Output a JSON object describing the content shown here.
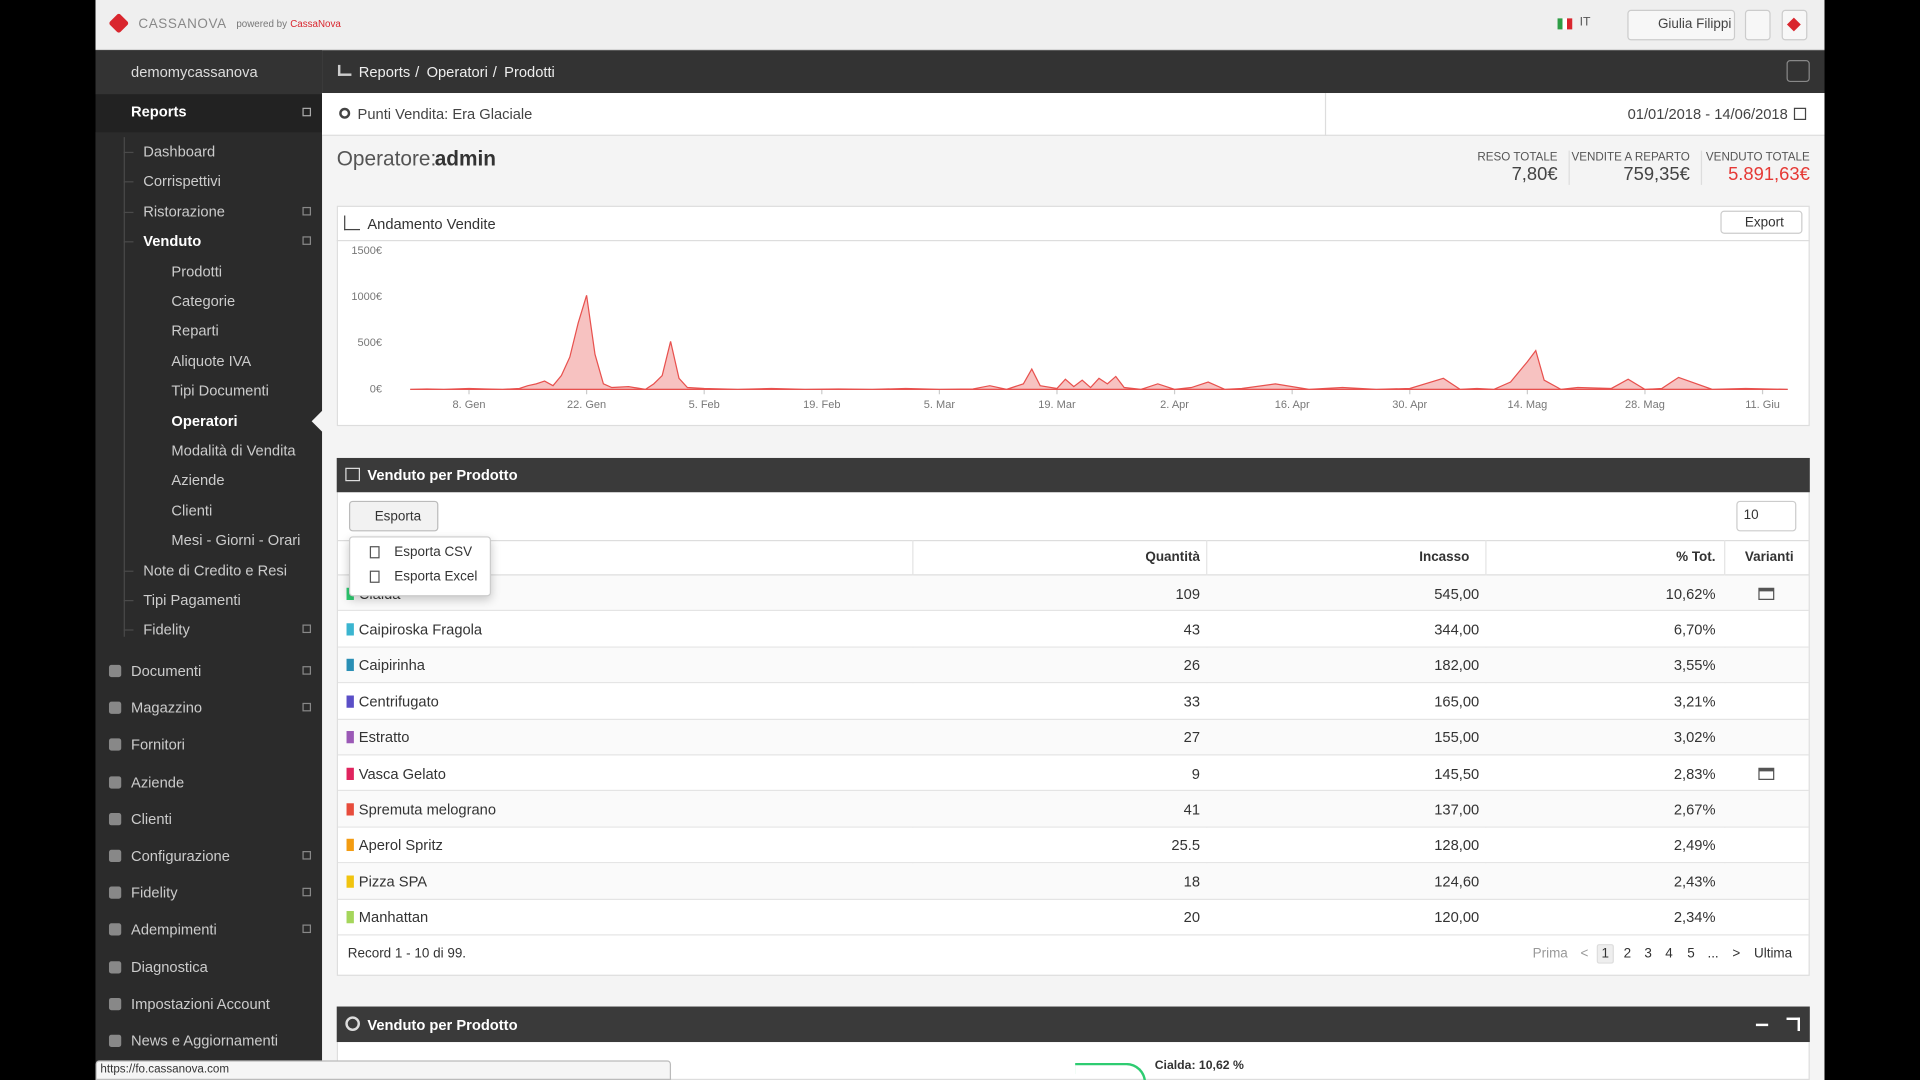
{
  "header": {
    "brand": "CASSANOVA",
    "powered_by": "powered by",
    "powered_brand": "CassaNova",
    "language": "IT",
    "user": "Giulia Filippi"
  },
  "sidebar": {
    "account": "demomycassanova",
    "reports": {
      "label": "Reports",
      "children": [
        {
          "label": "Dashboard"
        },
        {
          "label": "Corrispettivi"
        },
        {
          "label": "Ristorazione",
          "expandable": true
        },
        {
          "label": "Venduto",
          "expandable": true,
          "expanded": true,
          "children": [
            {
              "label": "Prodotti"
            },
            {
              "label": "Categorie"
            },
            {
              "label": "Reparti"
            },
            {
              "label": "Aliquote IVA"
            },
            {
              "label": "Tipi Documenti"
            },
            {
              "label": "Operatori",
              "active": true
            },
            {
              "label": "Modalità di Vendita"
            },
            {
              "label": "Aziende"
            },
            {
              "label": "Clienti"
            },
            {
              "label": "Mesi - Giorni - Orari"
            }
          ]
        },
        {
          "label": "Note di Credito e Resi"
        },
        {
          "label": "Tipi Pagamenti"
        },
        {
          "label": "Fidelity",
          "expandable": true
        }
      ]
    },
    "items": [
      {
        "label": "Documenti",
        "expandable": true
      },
      {
        "label": "Magazzino",
        "expandable": true
      },
      {
        "label": "Fornitori"
      },
      {
        "label": "Aziende"
      },
      {
        "label": "Clienti"
      },
      {
        "label": "Configurazione",
        "expandable": true
      },
      {
        "label": "Fidelity",
        "expandable": true
      },
      {
        "label": "Adempimenti",
        "expandable": true
      },
      {
        "label": "Diagnostica"
      },
      {
        "label": "Impostazioni Account"
      },
      {
        "label": "News e Aggiornamenti"
      }
    ]
  },
  "breadcrumb": {
    "separator": "/",
    "items": [
      "Reports",
      "Operatori",
      "Prodotti"
    ]
  },
  "filter": {
    "search": "Punti Vendita: Era Glaciale",
    "date_range": "01/01/2018 - 14/06/2018"
  },
  "operator": {
    "label": "Operatore:",
    "name": "admin"
  },
  "totals": [
    {
      "label": "RESO TOTALE",
      "value": "7,80€"
    },
    {
      "label": "VENDITE A REPARTO",
      "value": "759,35€"
    },
    {
      "label": "VENDUTO TOTALE",
      "value": "5.891,63€"
    }
  ],
  "chart_data": {
    "type": "area",
    "title": "Andamento Vendite",
    "color": "#e8514e",
    "x": [
      1,
      3,
      5,
      8,
      10,
      12,
      14,
      15,
      16,
      17,
      18,
      19,
      20,
      21,
      22,
      23,
      24,
      25,
      27,
      29,
      30,
      31,
      32,
      33,
      34,
      36,
      40,
      44,
      48,
      52,
      56,
      60,
      64,
      68,
      70,
      72,
      74,
      75,
      76,
      78,
      79,
      80,
      81,
      82,
      83,
      84,
      85,
      86,
      88,
      90,
      92,
      94,
      96,
      98,
      100,
      104,
      108,
      112,
      116,
      120,
      124,
      126,
      128,
      130,
      132,
      134,
      135,
      136,
      138,
      140,
      144,
      146,
      148,
      150,
      152,
      156,
      160,
      165
    ],
    "values": [
      0,
      5,
      0,
      10,
      5,
      0,
      10,
      40,
      60,
      90,
      40,
      150,
      350,
      720,
      1020,
      380,
      60,
      20,
      30,
      0,
      60,
      150,
      520,
      120,
      20,
      10,
      0,
      10,
      0,
      5,
      0,
      10,
      0,
      5,
      40,
      0,
      60,
      220,
      40,
      10,
      110,
      30,
      100,
      20,
      120,
      60,
      140,
      20,
      0,
      60,
      0,
      20,
      80,
      0,
      10,
      60,
      0,
      20,
      0,
      10,
      120,
      0,
      10,
      0,
      80,
      300,
      420,
      100,
      0,
      20,
      10,
      110,
      0,
      10,
      130,
      0,
      10,
      0
    ],
    "xlim": [
      1,
      165
    ],
    "ylim": [
      0,
      1500
    ],
    "xticks": [
      {
        "value": 8,
        "label": "8. Gen"
      },
      {
        "value": 22,
        "label": "22. Gen"
      },
      {
        "value": 36,
        "label": "5. Feb"
      },
      {
        "value": 50,
        "label": "19. Feb"
      },
      {
        "value": 64,
        "label": "5. Mar"
      },
      {
        "value": 78,
        "label": "19. Mar"
      },
      {
        "value": 92,
        "label": "2. Apr"
      },
      {
        "value": 106,
        "label": "16. Apr"
      },
      {
        "value": 120,
        "label": "30. Apr"
      },
      {
        "value": 134,
        "label": "14. Mag"
      },
      {
        "value": 148,
        "label": "28. Mag"
      },
      {
        "value": 162,
        "label": "11. Giu"
      }
    ],
    "yticks": [
      {
        "value": 0,
        "label": "0€"
      },
      {
        "value": 500,
        "label": "500€"
      },
      {
        "value": 1000,
        "label": "1000€"
      },
      {
        "value": 1500,
        "label": "1500€"
      }
    ],
    "grid": false,
    "export": "Export"
  },
  "table_panel": {
    "title": "Venduto per Prodotto",
    "export": "Esporta",
    "menu": [
      "Esporta CSV",
      "Esporta Excel"
    ],
    "page_size": "10",
    "columns": [
      "Quantità",
      "Incasso",
      "% Tot.",
      "Varianti"
    ],
    "rows": [
      {
        "name": "Cialda",
        "color": "#2ecc71",
        "quantita": "109",
        "incasso": "545,00",
        "tot": "10,62%",
        "varianti": true
      },
      {
        "name": "Caipiroska Fragola",
        "color": "#3bb5d0",
        "quantita": "43",
        "incasso": "344,00",
        "tot": "6,70%",
        "varianti": false
      },
      {
        "name": "Caipirinha",
        "color": "#2a8fb5",
        "quantita": "26",
        "incasso": "182,00",
        "tot": "3,55%",
        "varianti": false
      },
      {
        "name": "Centrifugato",
        "color": "#5b4fc7",
        "quantita": "33",
        "incasso": "165,00",
        "tot": "3,21%",
        "varianti": false
      },
      {
        "name": "Estratto",
        "color": "#9b59b6",
        "quantita": "27",
        "incasso": "155,00",
        "tot": "3,02%",
        "varianti": false
      },
      {
        "name": "Vasca Gelato",
        "color": "#e0245e",
        "quantita": "9",
        "incasso": "145,50",
        "tot": "2,83%",
        "varianti": true
      },
      {
        "name": "Spremuta melograno",
        "color": "#e74c3c",
        "quantita": "41",
        "incasso": "137,00",
        "tot": "2,67%",
        "varianti": false
      },
      {
        "name": "Aperol Spritz",
        "color": "#f39c12",
        "quantita": "25.5",
        "incasso": "128,00",
        "tot": "2,49%",
        "varianti": false
      },
      {
        "name": "Pizza SPA",
        "color": "#f1c40f",
        "quantita": "18",
        "incasso": "124,60",
        "tot": "2,43%",
        "varianti": false
      },
      {
        "name": "Manhattan",
        "color": "#a5d65b",
        "quantita": "20",
        "incasso": "120,00",
        "tot": "2,34%",
        "varianti": false
      }
    ],
    "record": "Record 1 - 10 di 99.",
    "pagination": [
      "Prima",
      "<",
      "1",
      "2",
      "3",
      "4",
      "5",
      "...",
      ">",
      "Ultima"
    ]
  },
  "pie_panel": {
    "title": "Venduto per Prodotto",
    "label": "Cialda: 10,62 %"
  },
  "status_url": "https://fo.cassanova.com"
}
